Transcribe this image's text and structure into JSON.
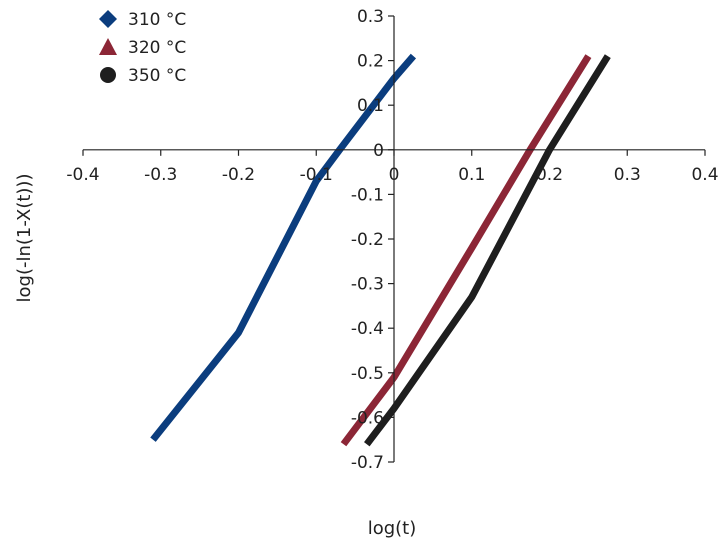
{
  "chart_data": {
    "type": "line",
    "xlabel": "log(t)",
    "ylabel": "log(-ln(1-X(t)))",
    "xlim": [
      -0.4,
      0.4
    ],
    "ylim": [
      -0.7,
      0.3
    ],
    "x_ticks": [
      -0.4,
      -0.3,
      -0.2,
      -0.1,
      0,
      0.1,
      0.2,
      0.3,
      0.4
    ],
    "y_ticks": [
      0.3,
      0.2,
      0.1,
      0,
      -0.1,
      -0.2,
      -0.3,
      -0.4,
      -0.5,
      -0.6,
      -0.7
    ],
    "x_tick_labels": [
      "-0.4",
      "-0.3",
      "-0.2",
      "-0.1",
      "0",
      "0.1",
      "0.2",
      "0.3",
      "0.4"
    ],
    "y_tick_labels": [
      "0.3",
      "0.2",
      "0.1",
      "0",
      "-0.1",
      "-0.2",
      "-0.3",
      "-0.4",
      "-0.5",
      "-0.6",
      "-0.7"
    ],
    "grid": false,
    "legend": "top-left",
    "series": [
      {
        "name": "310 °C",
        "marker": "diamond",
        "color": "#0b3d7e",
        "x": [
          -0.31,
          -0.2,
          -0.1,
          -0.07,
          0.0,
          0.025
        ],
        "y": [
          -0.65,
          -0.41,
          -0.07,
          0.0,
          0.16,
          0.21
        ]
      },
      {
        "name": "320 °C",
        "marker": "triangle",
        "color": "#8c2636",
        "x": [
          -0.065,
          0.0,
          0.1,
          0.175,
          0.25
        ],
        "y": [
          -0.66,
          -0.51,
          -0.22,
          0.0,
          0.21
        ]
      },
      {
        "name": "350 °C",
        "marker": "circle",
        "color": "#1e1e1e",
        "x": [
          -0.035,
          0.0,
          0.1,
          0.2,
          0.275
        ],
        "y": [
          -0.66,
          -0.58,
          -0.33,
          0.0,
          0.21
        ]
      }
    ]
  }
}
